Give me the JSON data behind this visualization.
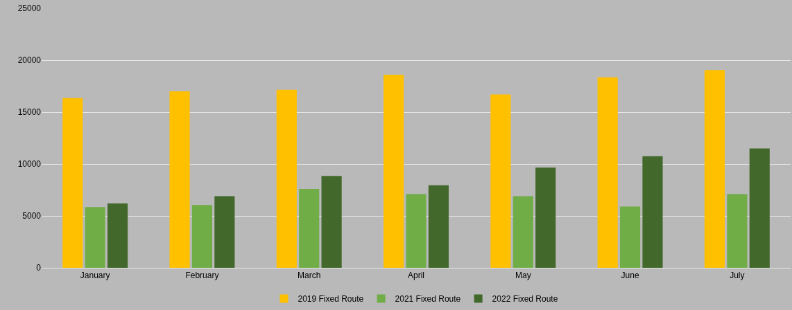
{
  "chart_data": {
    "type": "bar",
    "categories": [
      "January",
      "February",
      "March",
      "April",
      "May",
      "June",
      "July"
    ],
    "series": [
      {
        "name": "2019 Fixed Route",
        "color": "#ffc000",
        "values": [
          16350,
          17000,
          17150,
          18600,
          16700,
          18350,
          19050
        ]
      },
      {
        "name": "2021 Fixed Route",
        "color": "#70ad47",
        "values": [
          5850,
          6050,
          7600,
          7100,
          6900,
          5900,
          7100
        ]
      },
      {
        "name": "2022 Fixed Route",
        "color": "#43682b",
        "values": [
          6200,
          6900,
          8850,
          7950,
          9650,
          10750,
          11500
        ]
      }
    ],
    "ylim": [
      0,
      25000
    ],
    "yticks": [
      0,
      5000,
      10000,
      15000,
      20000,
      25000
    ],
    "grid": "y",
    "legend": "bottom"
  }
}
